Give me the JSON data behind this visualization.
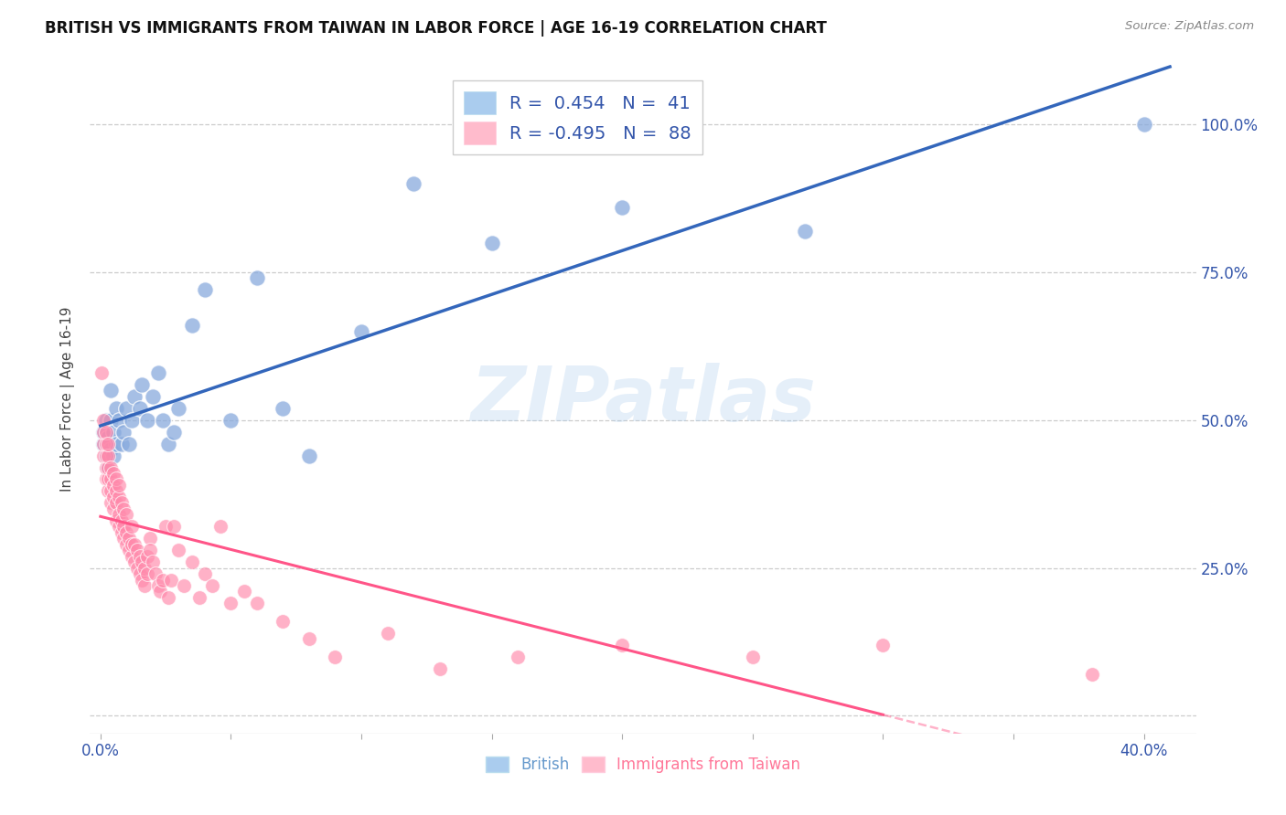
{
  "title": "BRITISH VS IMMIGRANTS FROM TAIWAN IN LABOR FORCE | AGE 16-19 CORRELATION CHART",
  "source": "Source: ZipAtlas.com",
  "ylabel": "In Labor Force | Age 16-19",
  "watermark": "ZIPatlas",
  "legend_r_british": "R =  0.454",
  "legend_n_british": "N =  41",
  "legend_r_taiwan": "R = -0.495",
  "legend_n_taiwan": "N =  88",
  "blue_color": "#88AADD",
  "pink_color": "#FF88AA",
  "blue_line_color": "#3366BB",
  "pink_line_color": "#FF5588",
  "xlim": [
    -0.004,
    0.42
  ],
  "ylim": [
    -0.03,
    1.1
  ],
  "x_tick_positions": [
    0.0,
    0.05,
    0.1,
    0.15,
    0.2,
    0.25,
    0.3,
    0.35,
    0.4
  ],
  "x_tick_labels": [
    "0.0%",
    "",
    "",
    "",
    "",
    "",
    "",
    "",
    "40.0%"
  ],
  "y_tick_positions": [
    0.0,
    0.25,
    0.5,
    0.75,
    1.0
  ],
  "y_tick_labels_right": [
    "",
    "25.0%",
    "50.0%",
    "75.0%",
    "100.0%"
  ],
  "british_x": [
    0.001,
    0.001,
    0.002,
    0.002,
    0.003,
    0.003,
    0.004,
    0.004,
    0.004,
    0.005,
    0.005,
    0.006,
    0.006,
    0.007,
    0.008,
    0.009,
    0.01,
    0.011,
    0.012,
    0.013,
    0.015,
    0.016,
    0.018,
    0.02,
    0.022,
    0.024,
    0.026,
    0.028,
    0.03,
    0.035,
    0.04,
    0.05,
    0.06,
    0.07,
    0.08,
    0.1,
    0.12,
    0.15,
    0.2,
    0.27,
    0.4
  ],
  "british_y": [
    0.46,
    0.48,
    0.44,
    0.5,
    0.42,
    0.47,
    0.45,
    0.5,
    0.55,
    0.44,
    0.48,
    0.52,
    0.46,
    0.5,
    0.46,
    0.48,
    0.52,
    0.46,
    0.5,
    0.54,
    0.52,
    0.56,
    0.5,
    0.54,
    0.58,
    0.5,
    0.46,
    0.48,
    0.52,
    0.66,
    0.72,
    0.5,
    0.74,
    0.52,
    0.44,
    0.65,
    0.9,
    0.8,
    0.86,
    0.82,
    1.0
  ],
  "taiwan_x": [
    0.0005,
    0.001,
    0.001,
    0.001,
    0.001,
    0.002,
    0.002,
    0.002,
    0.002,
    0.002,
    0.003,
    0.003,
    0.003,
    0.003,
    0.003,
    0.004,
    0.004,
    0.004,
    0.004,
    0.005,
    0.005,
    0.005,
    0.005,
    0.006,
    0.006,
    0.006,
    0.006,
    0.007,
    0.007,
    0.007,
    0.007,
    0.008,
    0.008,
    0.008,
    0.009,
    0.009,
    0.009,
    0.01,
    0.01,
    0.01,
    0.011,
    0.011,
    0.012,
    0.012,
    0.012,
    0.013,
    0.013,
    0.014,
    0.014,
    0.015,
    0.015,
    0.016,
    0.016,
    0.017,
    0.017,
    0.018,
    0.018,
    0.019,
    0.019,
    0.02,
    0.021,
    0.022,
    0.023,
    0.024,
    0.025,
    0.026,
    0.027,
    0.028,
    0.03,
    0.032,
    0.035,
    0.038,
    0.04,
    0.043,
    0.046,
    0.05,
    0.055,
    0.06,
    0.07,
    0.08,
    0.09,
    0.11,
    0.13,
    0.16,
    0.2,
    0.25,
    0.3,
    0.38
  ],
  "taiwan_y": [
    0.58,
    0.44,
    0.46,
    0.48,
    0.5,
    0.4,
    0.42,
    0.44,
    0.46,
    0.48,
    0.38,
    0.4,
    0.42,
    0.44,
    0.46,
    0.36,
    0.38,
    0.4,
    0.42,
    0.35,
    0.37,
    0.39,
    0.41,
    0.33,
    0.36,
    0.38,
    0.4,
    0.32,
    0.34,
    0.37,
    0.39,
    0.31,
    0.33,
    0.36,
    0.3,
    0.32,
    0.35,
    0.29,
    0.31,
    0.34,
    0.28,
    0.3,
    0.27,
    0.29,
    0.32,
    0.26,
    0.29,
    0.25,
    0.28,
    0.24,
    0.27,
    0.23,
    0.26,
    0.22,
    0.25,
    0.24,
    0.27,
    0.3,
    0.28,
    0.26,
    0.24,
    0.22,
    0.21,
    0.23,
    0.32,
    0.2,
    0.23,
    0.32,
    0.28,
    0.22,
    0.26,
    0.2,
    0.24,
    0.22,
    0.32,
    0.19,
    0.21,
    0.19,
    0.16,
    0.13,
    0.1,
    0.14,
    0.08,
    0.1,
    0.12,
    0.1,
    0.12,
    0.07
  ]
}
